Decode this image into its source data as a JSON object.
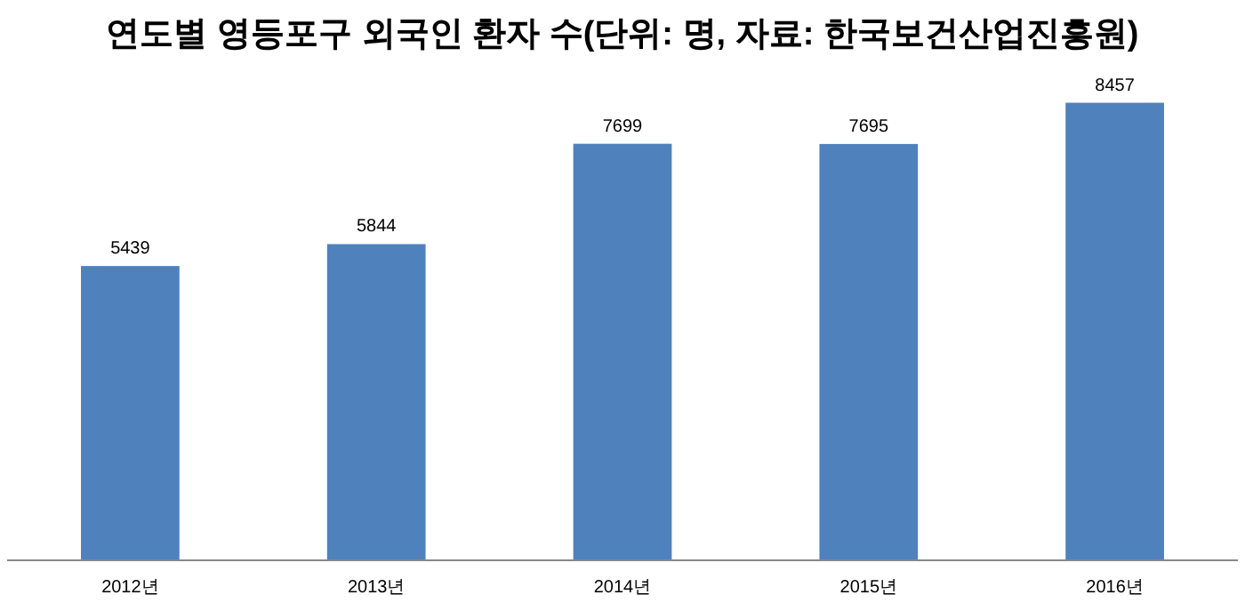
{
  "chart_data": {
    "type": "bar",
    "title": "연도별 영등포구 외국인 환자 수(단위: 명, 자료: 한국보건산업진흥원)",
    "categories": [
      "2012년",
      "2013년",
      "2014년",
      "2015년",
      "2016년"
    ],
    "values": [
      5439,
      5844,
      7699,
      7695,
      8457
    ],
    "color": "#4f81bd",
    "data_labels": true
  }
}
